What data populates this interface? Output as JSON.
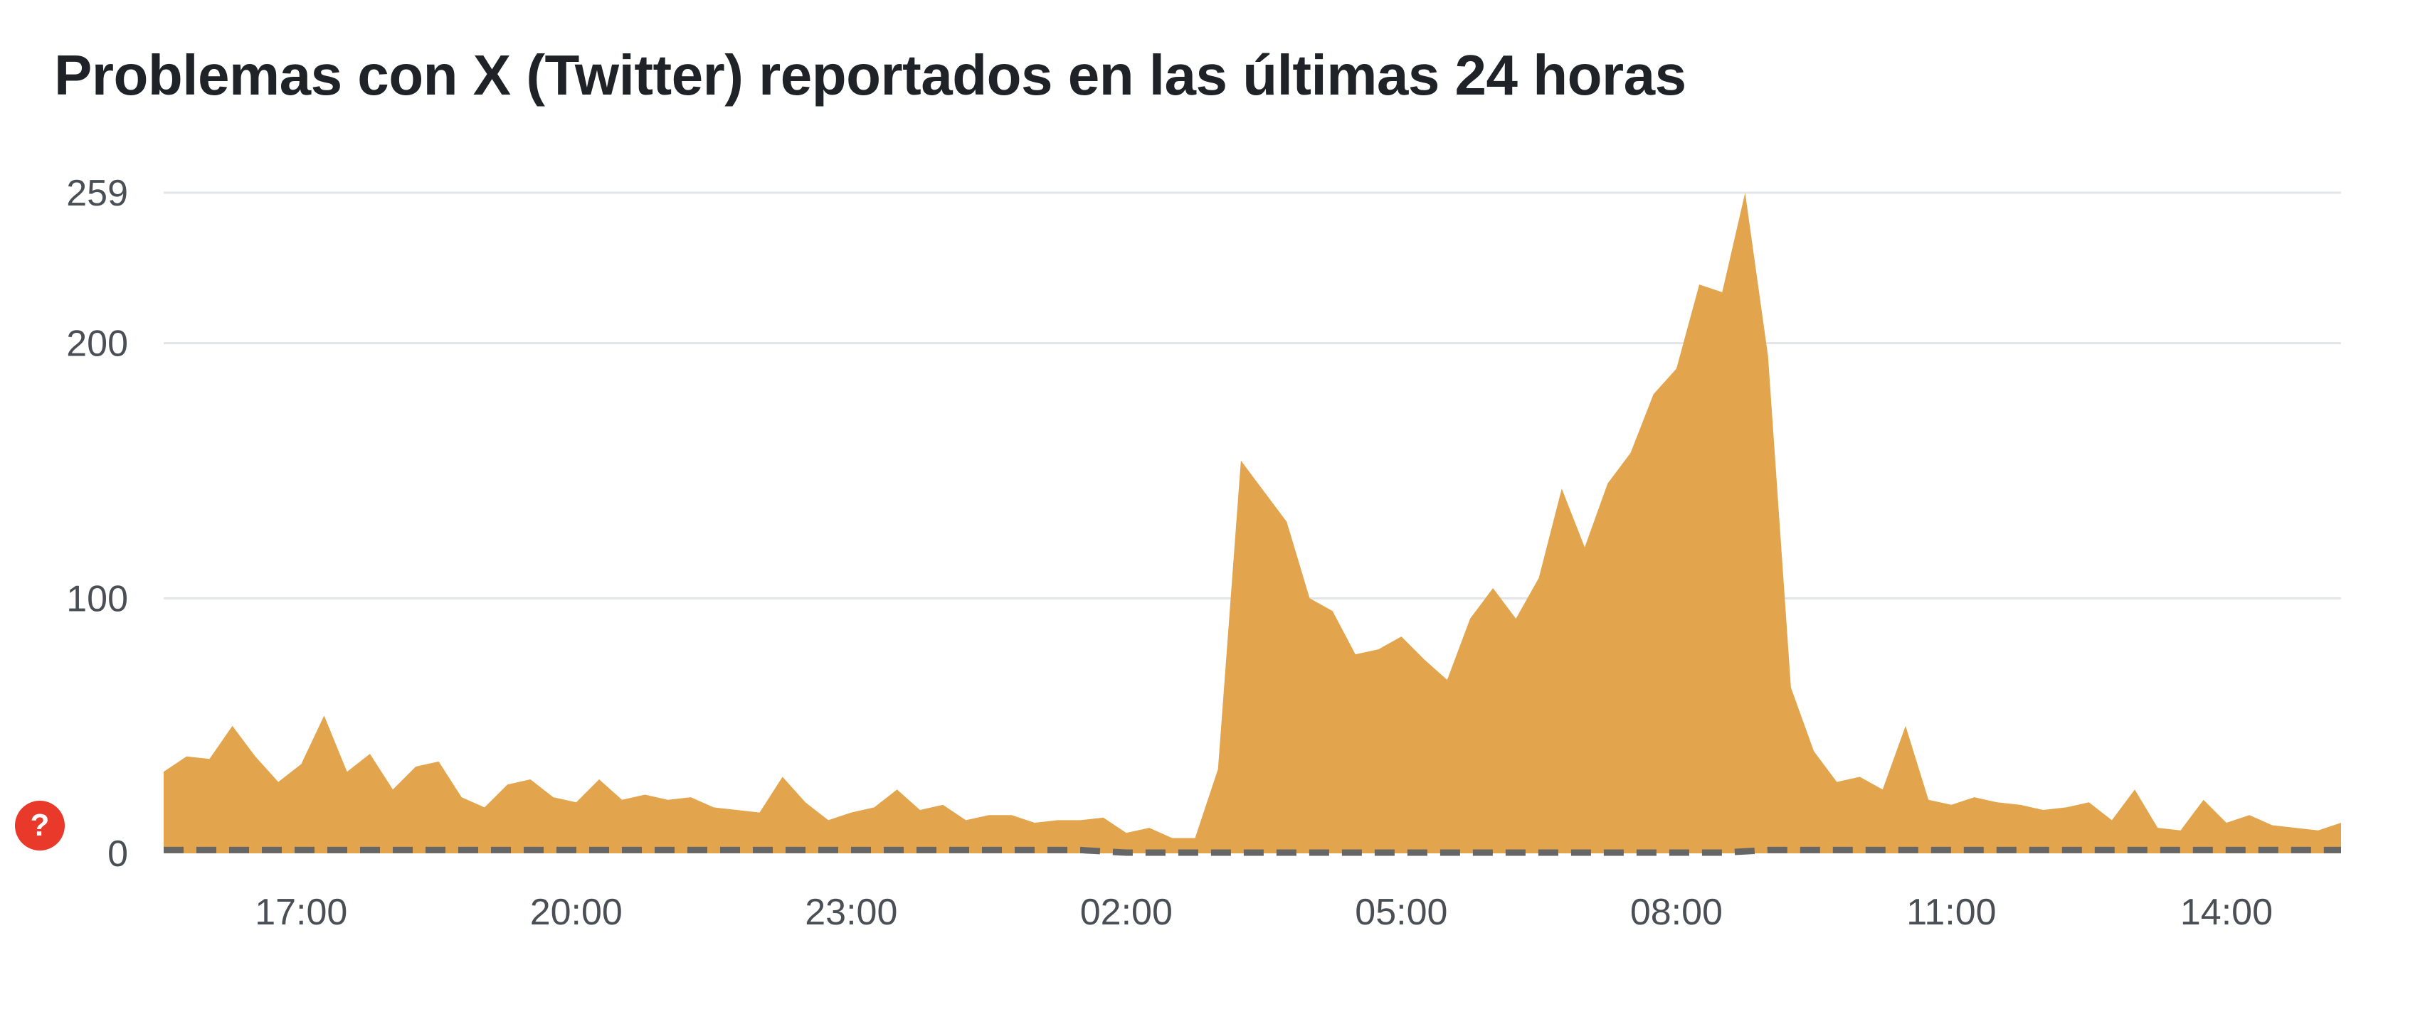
{
  "title": "Problemas con X (Twitter) reportados en las últimas 24 horas",
  "help_icon": {
    "icon": "question-icon",
    "glyph": "?",
    "color": "#e8392b"
  },
  "colors": {
    "area": "#e2a54d",
    "grid": "#e2e4e7",
    "baseline": "#666666",
    "text": "#4a4f55"
  },
  "chart_data": {
    "type": "area",
    "title": "Problemas con X (Twitter) reportados en las últimas 24 horas",
    "xlabel": "",
    "ylabel": "",
    "x_range_hours": [
      15.5,
      39.25
    ],
    "ylim": [
      0,
      259
    ],
    "y_ticks": [
      {
        "value": 0,
        "label": "0"
      },
      {
        "value": 100,
        "label": "100"
      },
      {
        "value": 200,
        "label": "200"
      },
      {
        "value": 259,
        "label": "259"
      }
    ],
    "x_ticks": [
      {
        "value": 17,
        "label": "17:00"
      },
      {
        "value": 20,
        "label": "20:00"
      },
      {
        "value": 23,
        "label": "23:00"
      },
      {
        "value": 26,
        "label": "02:00"
      },
      {
        "value": 29,
        "label": "05:00"
      },
      {
        "value": 32,
        "label": "08:00"
      },
      {
        "value": 35,
        "label": "11:00"
      },
      {
        "value": 38,
        "label": "14:00"
      }
    ],
    "grid": true,
    "legend": "none",
    "baseline_series": {
      "style": "dashed",
      "points": [
        [
          15.5,
          1
        ],
        [
          25.5,
          1
        ],
        [
          26.0,
          0
        ],
        [
          32.5,
          0
        ],
        [
          33.0,
          1
        ],
        [
          39.25,
          1
        ]
      ]
    },
    "series": [
      {
        "points": [
          [
            15.5,
            32
          ],
          [
            15.75,
            38
          ],
          [
            16.0,
            37
          ],
          [
            16.25,
            50
          ],
          [
            16.5,
            38
          ],
          [
            16.75,
            28
          ],
          [
            17.0,
            35
          ],
          [
            17.25,
            54
          ],
          [
            17.5,
            32
          ],
          [
            17.75,
            39
          ],
          [
            18.0,
            25
          ],
          [
            18.25,
            34
          ],
          [
            18.5,
            36
          ],
          [
            18.75,
            22
          ],
          [
            19.0,
            18
          ],
          [
            19.25,
            27
          ],
          [
            19.5,
            29
          ],
          [
            19.75,
            22
          ],
          [
            20.0,
            20
          ],
          [
            20.25,
            29
          ],
          [
            20.5,
            21
          ],
          [
            20.75,
            23
          ],
          [
            21.0,
            21
          ],
          [
            21.25,
            22
          ],
          [
            21.5,
            18
          ],
          [
            21.75,
            17
          ],
          [
            22.0,
            16
          ],
          [
            22.25,
            30
          ],
          [
            22.5,
            20
          ],
          [
            22.75,
            13
          ],
          [
            23.0,
            16
          ],
          [
            23.25,
            18
          ],
          [
            23.5,
            25
          ],
          [
            23.75,
            17
          ],
          [
            24.0,
            19
          ],
          [
            24.25,
            13
          ],
          [
            24.5,
            15
          ],
          [
            24.75,
            15
          ],
          [
            25.0,
            12
          ],
          [
            25.25,
            13
          ],
          [
            25.5,
            13
          ],
          [
            25.75,
            14
          ],
          [
            26.0,
            8
          ],
          [
            26.25,
            10
          ],
          [
            26.5,
            6
          ],
          [
            26.75,
            6
          ],
          [
            27.0,
            33
          ],
          [
            27.25,
            154
          ],
          [
            27.5,
            142
          ],
          [
            27.75,
            130
          ],
          [
            28.0,
            100
          ],
          [
            28.25,
            95
          ],
          [
            28.5,
            78
          ],
          [
            28.75,
            80
          ],
          [
            29.0,
            85
          ],
          [
            29.25,
            76
          ],
          [
            29.5,
            68
          ],
          [
            29.75,
            92
          ],
          [
            30.0,
            104
          ],
          [
            30.25,
            92
          ],
          [
            30.5,
            108
          ],
          [
            30.75,
            143
          ],
          [
            31.0,
            120
          ],
          [
            31.25,
            145
          ],
          [
            31.5,
            157
          ],
          [
            31.75,
            180
          ],
          [
            32.0,
            190
          ],
          [
            32.25,
            223
          ],
          [
            32.5,
            220
          ],
          [
            32.75,
            259
          ],
          [
            33.0,
            195
          ],
          [
            33.25,
            65
          ],
          [
            33.5,
            40
          ],
          [
            33.75,
            28
          ],
          [
            34.0,
            30
          ],
          [
            34.25,
            25
          ],
          [
            34.5,
            50
          ],
          [
            34.75,
            21
          ],
          [
            35.0,
            19
          ],
          [
            35.25,
            22
          ],
          [
            35.5,
            20
          ],
          [
            35.75,
            19
          ],
          [
            36.0,
            17
          ],
          [
            36.25,
            18
          ],
          [
            36.5,
            20
          ],
          [
            36.75,
            13
          ],
          [
            37.0,
            25
          ],
          [
            37.25,
            10
          ],
          [
            37.5,
            9
          ],
          [
            37.75,
            21
          ],
          [
            38.0,
            12
          ],
          [
            38.25,
            15
          ],
          [
            38.5,
            11
          ],
          [
            38.75,
            10
          ],
          [
            39.0,
            9
          ],
          [
            39.25,
            12
          ]
        ]
      }
    ]
  }
}
